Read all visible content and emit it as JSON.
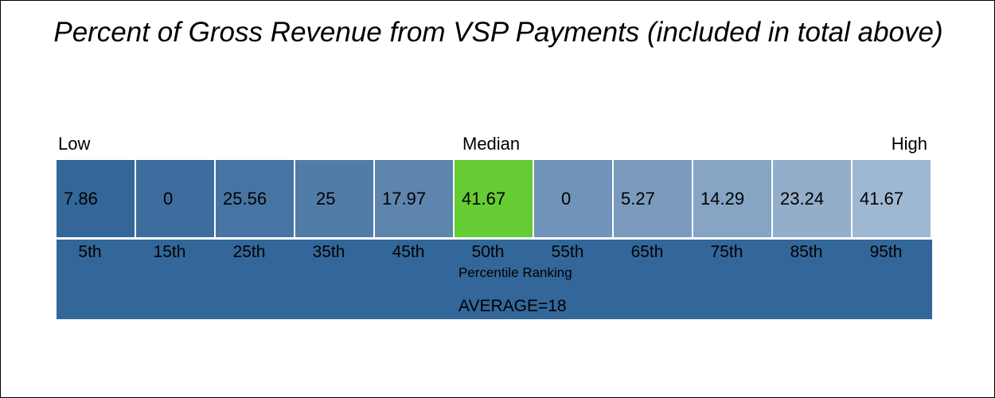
{
  "chart_data": {
    "type": "table",
    "title": "Percent of Gross Revenue from VSP Payments (included in total above)",
    "scale_labels": {
      "low": "Low",
      "median": "Median",
      "high": "High"
    },
    "percentiles": [
      "5th",
      "15th",
      "25th",
      "35th",
      "45th",
      "50th",
      "55th",
      "65th",
      "75th",
      "85th",
      "95th"
    ],
    "values": [
      "7.86",
      "0",
      "25.56",
      "25",
      "17.97",
      "41.67",
      "0",
      "5.27",
      "14.29",
      "23.24",
      "41.67"
    ],
    "highlight_index": 5,
    "ranking_label": "Percentile Ranking",
    "average_label": "AVERAGE=18",
    "colors": {
      "cells": [
        "#336699",
        "#3d6d9e",
        "#4774a3",
        "#527ca8",
        "#5d85ad",
        "#66cc33",
        "#7093b9",
        "#7b9bbe",
        "#86a4c4",
        "#93aeca",
        "#9fb8d2"
      ],
      "band": "#336699"
    }
  }
}
